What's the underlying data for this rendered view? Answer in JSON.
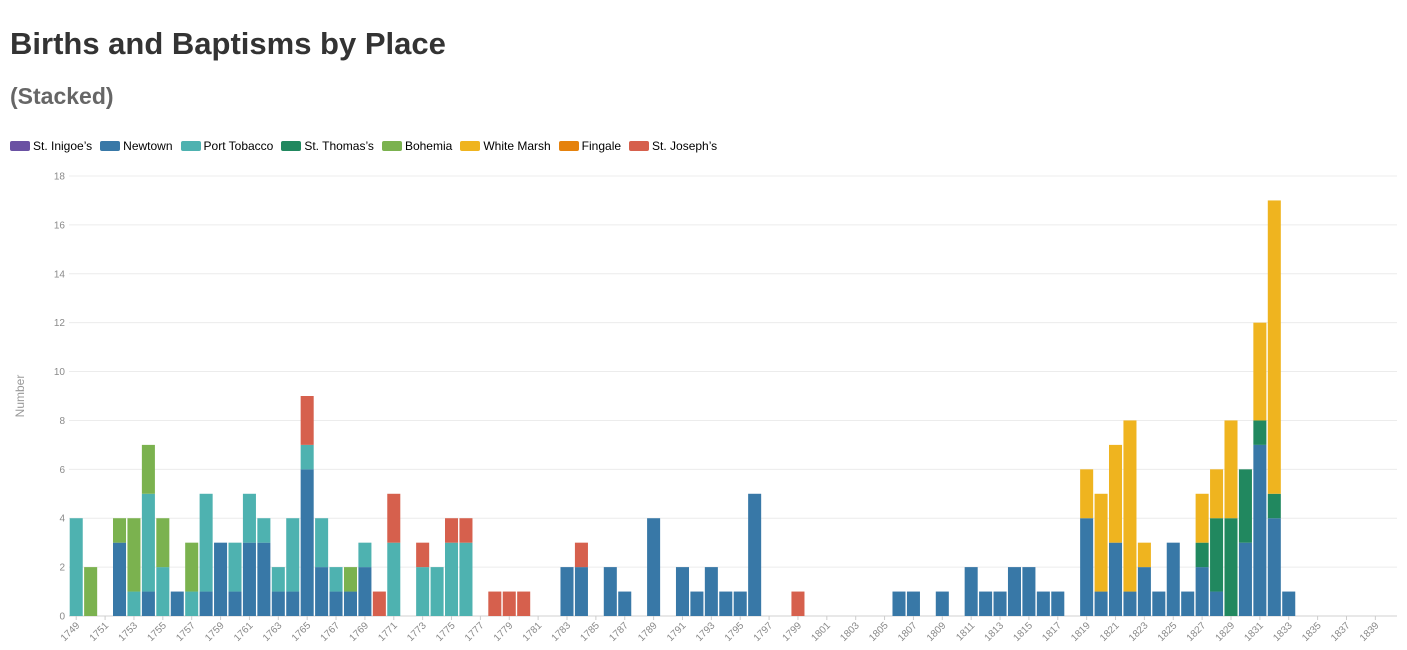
{
  "title": "Births and Baptisms by Place",
  "subtitle": "(Stacked)",
  "chart_data": {
    "type": "bar",
    "stacked": true,
    "title": "Births and Baptisms by Place",
    "subtitle": "(Stacked)",
    "xlabel": "",
    "ylabel": "Number",
    "ylim": [
      0,
      18
    ],
    "yticks": [
      0,
      2,
      4,
      6,
      8,
      10,
      12,
      14,
      16,
      18
    ],
    "grid": true,
    "legend_position": "top-left",
    "x_tick_labels": [
      "1749",
      "1751",
      "1753",
      "1755",
      "1757",
      "1759",
      "1761",
      "1763",
      "1765",
      "1767",
      "1769",
      "1771",
      "1773",
      "1775",
      "1777",
      "1779",
      "1781",
      "1783",
      "1785",
      "1787",
      "1789",
      "1791",
      "1793",
      "1795",
      "1797",
      "1799",
      "1801",
      "1803",
      "1805",
      "1807",
      "1809",
      "1811",
      "1813",
      "1815",
      "1817",
      "1819",
      "1821",
      "1823",
      "1825",
      "1827",
      "1829",
      "1831",
      "1833",
      "1835",
      "1837",
      "1839"
    ],
    "categories": [
      "1749",
      "1750",
      "1751",
      "1752",
      "1753",
      "1754",
      "1755",
      "1756",
      "1757",
      "1758",
      "1759",
      "1760",
      "1761",
      "1762",
      "1763",
      "1764",
      "1765",
      "1766",
      "1767",
      "1768",
      "1769",
      "1770",
      "1771",
      "1772",
      "1773",
      "1774",
      "1775",
      "1776",
      "1777",
      "1778",
      "1779",
      "1780",
      "1781",
      "1782",
      "1783",
      "1784",
      "1785",
      "1786",
      "1787",
      "1788",
      "1789",
      "1790",
      "1791",
      "1792",
      "1793",
      "1794",
      "1795",
      "1796",
      "1797",
      "1798",
      "1799",
      "1800",
      "1801",
      "1802",
      "1803",
      "1804",
      "1805",
      "1806",
      "1807",
      "1808",
      "1809",
      "1810",
      "1811",
      "1812",
      "1813",
      "1814",
      "1815",
      "1816",
      "1817",
      "1818",
      "1819",
      "1820",
      "1821",
      "1822",
      "1823",
      "1824",
      "1825",
      "1826",
      "1827",
      "1828",
      "1829",
      "1830",
      "1831",
      "1832",
      "1833",
      "1834",
      "1835",
      "1836",
      "1837",
      "1838",
      "1839",
      "1840"
    ],
    "series": [
      {
        "name": "St. Inigoe’s",
        "color": "#6a51a3",
        "values": [
          0,
          0,
          0,
          0,
          0,
          0,
          0,
          0,
          0,
          0,
          0,
          0,
          0,
          0,
          0,
          0,
          0,
          0,
          0,
          0,
          0,
          0,
          0,
          0,
          0,
          0,
          0,
          0,
          0,
          0,
          0,
          0,
          0,
          0,
          0,
          0,
          0,
          0,
          0,
          0,
          0,
          0,
          0,
          0,
          0,
          0,
          0,
          0,
          0,
          0,
          0,
          0,
          0,
          0,
          0,
          0,
          0,
          0,
          0,
          0,
          0,
          0,
          0,
          0,
          0,
          0,
          0,
          0,
          0,
          0,
          0,
          0,
          0,
          0,
          0,
          0,
          0,
          0,
          0,
          0,
          0,
          0,
          0,
          0,
          0,
          0,
          0,
          0,
          0,
          0,
          0,
          0
        ]
      },
      {
        "name": "Newtown",
        "color": "#3878a7",
        "values": [
          0,
          0,
          0,
          3,
          0,
          1,
          0,
          1,
          0,
          1,
          3,
          1,
          3,
          3,
          1,
          1,
          6,
          2,
          1,
          1,
          2,
          0,
          0,
          0,
          0,
          0,
          0,
          0,
          0,
          0,
          0,
          0,
          0,
          0,
          2,
          2,
          0,
          2,
          1,
          0,
          4,
          0,
          2,
          1,
          2,
          1,
          1,
          5,
          0,
          0,
          0,
          0,
          0,
          0,
          0,
          0,
          0,
          1,
          1,
          0,
          1,
          0,
          2,
          1,
          1,
          2,
          2,
          1,
          1,
          0,
          4,
          1,
          3,
          1,
          2,
          1,
          3,
          1,
          2,
          1,
          0,
          3,
          7,
          4,
          1,
          0,
          0,
          0,
          0,
          0,
          0,
          0
        ]
      },
      {
        "name": "Port Tobacco",
        "color": "#4eb2b0",
        "values": [
          4,
          0,
          0,
          0,
          1,
          4,
          2,
          0,
          1,
          4,
          0,
          2,
          2,
          1,
          1,
          3,
          1,
          2,
          1,
          0,
          1,
          0,
          3,
          0,
          2,
          2,
          3,
          3,
          0,
          0,
          0,
          0,
          0,
          0,
          0,
          0,
          0,
          0,
          0,
          0,
          0,
          0,
          0,
          0,
          0,
          0,
          0,
          0,
          0,
          0,
          0,
          0,
          0,
          0,
          0,
          0,
          0,
          0,
          0,
          0,
          0,
          0,
          0,
          0,
          0,
          0,
          0,
          0,
          0,
          0,
          0,
          0,
          0,
          0,
          0,
          0,
          0,
          0,
          0,
          0,
          0,
          0,
          0,
          0,
          0,
          0,
          0,
          0,
          0,
          0,
          0,
          0
        ]
      },
      {
        "name": "St. Thomas’s",
        "color": "#21885f",
        "values": [
          0,
          0,
          0,
          0,
          0,
          0,
          0,
          0,
          0,
          0,
          0,
          0,
          0,
          0,
          0,
          0,
          0,
          0,
          0,
          0,
          0,
          0,
          0,
          0,
          0,
          0,
          0,
          0,
          0,
          0,
          0,
          0,
          0,
          0,
          0,
          0,
          0,
          0,
          0,
          0,
          0,
          0,
          0,
          0,
          0,
          0,
          0,
          0,
          0,
          0,
          0,
          0,
          0,
          0,
          0,
          0,
          0,
          0,
          0,
          0,
          0,
          0,
          0,
          0,
          0,
          0,
          0,
          0,
          0,
          0,
          0,
          0,
          0,
          0,
          0,
          0,
          0,
          0,
          1,
          3,
          4,
          3,
          1,
          1,
          0,
          0,
          0,
          0,
          0,
          0,
          0,
          0
        ]
      },
      {
        "name": "Bohemia",
        "color": "#7bb24f",
        "values": [
          0,
          2,
          0,
          1,
          3,
          2,
          2,
          0,
          2,
          0,
          0,
          0,
          0,
          0,
          0,
          0,
          0,
          0,
          0,
          1,
          0,
          0,
          0,
          0,
          0,
          0,
          0,
          0,
          0,
          0,
          0,
          0,
          0,
          0,
          0,
          0,
          0,
          0,
          0,
          0,
          0,
          0,
          0,
          0,
          0,
          0,
          0,
          0,
          0,
          0,
          0,
          0,
          0,
          0,
          0,
          0,
          0,
          0,
          0,
          0,
          0,
          0,
          0,
          0,
          0,
          0,
          0,
          0,
          0,
          0,
          0,
          0,
          0,
          0,
          0,
          0,
          0,
          0,
          0,
          0,
          0,
          0,
          0,
          0,
          0,
          0,
          0,
          0,
          0,
          0,
          0,
          0
        ]
      },
      {
        "name": "White Marsh",
        "color": "#efb41f",
        "values": [
          0,
          0,
          0,
          0,
          0,
          0,
          0,
          0,
          0,
          0,
          0,
          0,
          0,
          0,
          0,
          0,
          0,
          0,
          0,
          0,
          0,
          0,
          0,
          0,
          0,
          0,
          0,
          0,
          0,
          0,
          0,
          0,
          0,
          0,
          0,
          0,
          0,
          0,
          0,
          0,
          0,
          0,
          0,
          0,
          0,
          0,
          0,
          0,
          0,
          0,
          0,
          0,
          0,
          0,
          0,
          0,
          0,
          0,
          0,
          0,
          0,
          0,
          0,
          0,
          0,
          0,
          0,
          0,
          0,
          0,
          2,
          4,
          4,
          7,
          1,
          0,
          0,
          0,
          2,
          2,
          4,
          0,
          4,
          12,
          0,
          0,
          0,
          0,
          0,
          0,
          0,
          0
        ]
      },
      {
        "name": "Fingale",
        "color": "#e5820d",
        "values": [
          0,
          0,
          0,
          0,
          0,
          0,
          0,
          0,
          0,
          0,
          0,
          0,
          0,
          0,
          0,
          0,
          0,
          0,
          0,
          0,
          0,
          0,
          0,
          0,
          0,
          0,
          0,
          0,
          0,
          0,
          0,
          0,
          0,
          0,
          0,
          0,
          0,
          0,
          0,
          0,
          0,
          0,
          0,
          0,
          0,
          0,
          0,
          0,
          0,
          0,
          0,
          0,
          0,
          0,
          0,
          0,
          0,
          0,
          0,
          0,
          0,
          0,
          0,
          0,
          0,
          0,
          0,
          0,
          0,
          0,
          0,
          0,
          0,
          0,
          0,
          0,
          0,
          0,
          0,
          0,
          0,
          0,
          0,
          0,
          0,
          0,
          0,
          0,
          0,
          0,
          0,
          0
        ]
      },
      {
        "name": "St. Joseph’s",
        "color": "#d6604d",
        "values": [
          0,
          0,
          0,
          0,
          0,
          0,
          0,
          0,
          0,
          0,
          0,
          0,
          0,
          0,
          0,
          0,
          2,
          0,
          0,
          0,
          0,
          1,
          2,
          0,
          1,
          0,
          1,
          1,
          0,
          1,
          1,
          1,
          0,
          0,
          0,
          1,
          0,
          0,
          0,
          0,
          0,
          0,
          0,
          0,
          0,
          0,
          0,
          0,
          0,
          0,
          1,
          0,
          0,
          0,
          0,
          0,
          0,
          0,
          0,
          0,
          0,
          0,
          0,
          0,
          0,
          0,
          0,
          0,
          0,
          0,
          0,
          0,
          0,
          0,
          0,
          0,
          0,
          0,
          0,
          0,
          0,
          0,
          0,
          0,
          0,
          0,
          0,
          0,
          0,
          0,
          0,
          0
        ]
      }
    ]
  }
}
